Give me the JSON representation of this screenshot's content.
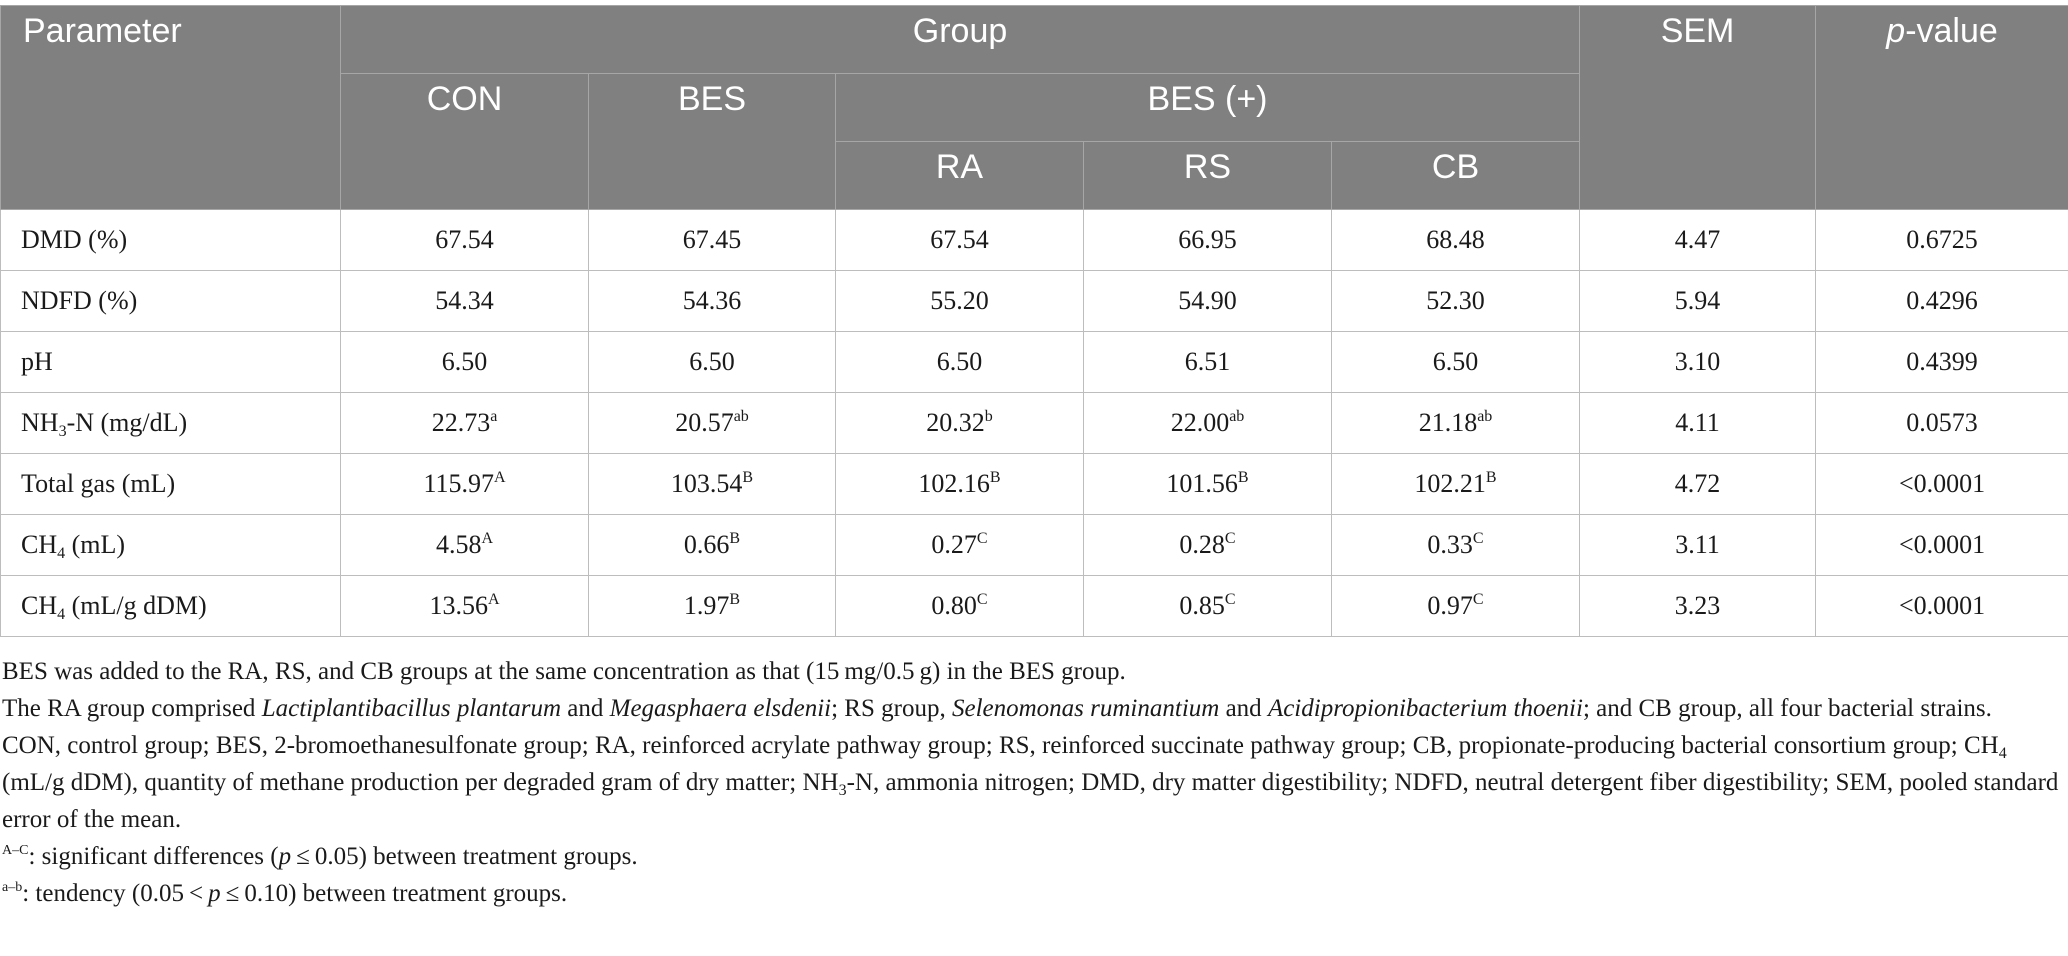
{
  "table": {
    "header": {
      "parameter": "Parameter",
      "group": "Group",
      "sem": "SEM",
      "p_italic": "p",
      "p_rest": "-value",
      "con": "CON",
      "bes": "BES",
      "bes_plus": "BES (+)",
      "ra": "RA",
      "rs": "RS",
      "cb": "CB"
    },
    "rows": [
      {
        "label": "DMD (%)",
        "values": [
          {
            "v": "67.54",
            "s": ""
          },
          {
            "v": "67.45",
            "s": ""
          },
          {
            "v": "67.54",
            "s": ""
          },
          {
            "v": "66.95",
            "s": ""
          },
          {
            "v": "68.48",
            "s": ""
          }
        ],
        "sem": "4.47",
        "p": "0.6725"
      },
      {
        "label": "NDFD (%)",
        "values": [
          {
            "v": "54.34",
            "s": ""
          },
          {
            "v": "54.36",
            "s": ""
          },
          {
            "v": "55.20",
            "s": ""
          },
          {
            "v": "54.90",
            "s": ""
          },
          {
            "v": "52.30",
            "s": ""
          }
        ],
        "sem": "5.94",
        "p": "0.4296"
      },
      {
        "label": "pH",
        "values": [
          {
            "v": "6.50",
            "s": ""
          },
          {
            "v": "6.50",
            "s": ""
          },
          {
            "v": "6.50",
            "s": ""
          },
          {
            "v": "6.51",
            "s": ""
          },
          {
            "v": "6.50",
            "s": ""
          }
        ],
        "sem": "3.10",
        "p": "0.4399"
      },
      {
        "label_pre": "NH",
        "label_sub": "3",
        "label_post": "-N (mg/dL)",
        "values": [
          {
            "v": "22.73",
            "s": "a"
          },
          {
            "v": "20.57",
            "s": "ab"
          },
          {
            "v": "20.32",
            "s": "b"
          },
          {
            "v": "22.00",
            "s": "ab"
          },
          {
            "v": "21.18",
            "s": "ab"
          }
        ],
        "sem": "4.11",
        "p": "0.0573"
      },
      {
        "label": "Total gas (mL)",
        "values": [
          {
            "v": "115.97",
            "s": "A"
          },
          {
            "v": "103.54",
            "s": "B"
          },
          {
            "v": "102.16",
            "s": "B"
          },
          {
            "v": "101.56",
            "s": "B"
          },
          {
            "v": "102.21",
            "s": "B"
          }
        ],
        "sem": "4.72",
        "p": "<0.0001"
      },
      {
        "label_pre": "CH",
        "label_sub": "4",
        "label_post": " (mL)",
        "values": [
          {
            "v": "4.58",
            "s": "A"
          },
          {
            "v": "0.66",
            "s": "B"
          },
          {
            "v": "0.27",
            "s": "C"
          },
          {
            "v": "0.28",
            "s": "C"
          },
          {
            "v": "0.33",
            "s": "C"
          }
        ],
        "sem": "3.11",
        "p": "<0.0001"
      },
      {
        "label_pre": "CH",
        "label_sub": "4",
        "label_post": " (mL/g dDM)",
        "values": [
          {
            "v": "13.56",
            "s": "A"
          },
          {
            "v": "1.97",
            "s": "B"
          },
          {
            "v": "0.80",
            "s": "C"
          },
          {
            "v": "0.85",
            "s": "C"
          },
          {
            "v": "0.97",
            "s": "C"
          }
        ],
        "sem": "3.23",
        "p": "<0.0001"
      }
    ]
  },
  "notes": {
    "n1": "BES was added to the RA, RS, and CB groups at the same concentration as that (15 mg/0.5 g) in the BES group.",
    "n2": [
      {
        "t": "The RA group comprised ",
        "i": false
      },
      {
        "t": "Lactiplantibacillus plantarum",
        "i": true
      },
      {
        "t": " and ",
        "i": false
      },
      {
        "t": "Megasphaera elsdenii",
        "i": true
      },
      {
        "t": "; RS group, ",
        "i": false
      },
      {
        "t": "Selenomonas ruminantium",
        "i": true
      },
      {
        "t": " and ",
        "i": false
      },
      {
        "t": "Acidipropionibacterium thoenii",
        "i": true
      },
      {
        "t": "; and CB group, all four bacterial strains.",
        "i": false
      }
    ],
    "n3a": "CON, control group; BES, 2-bromoethanesulfonate group; RA, reinforced acrylate pathway group; RS, reinforced succinate pathway group; CB, propionate-producing bacterial consortium group; CH",
    "n3b": "4",
    "n3c": " (mL/g dDM), quantity of methane production per degraded gram of dry matter; NH",
    "n3d": "3",
    "n3e": "-N, ammonia nitrogen; DMD, dry matter digestibility; NDFD, neutral detergent fiber digestibility; SEM, pooled standard error of the mean.",
    "n4_mark": "A–C",
    "n4_a": ": significant differences (",
    "n4_p": "p",
    "n4_b": " ≤ 0.05) between treatment groups.",
    "n5_mark": "a–b",
    "n5_a": ": tendency (0.05 < ",
    "n5_p": "p",
    "n5_b": " ≤ 0.10) between treatment groups."
  }
}
